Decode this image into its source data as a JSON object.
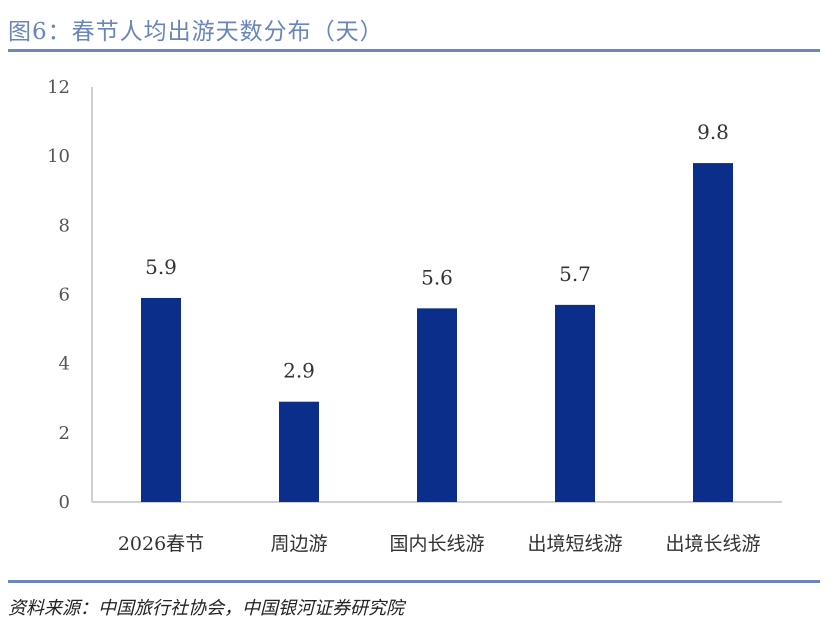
{
  "title": "图6：春节人均出游天数分布（天）",
  "source": "资料来源：中国旅行社协会，中国银河证券研究院",
  "colors": {
    "bar": "#0b2e8a",
    "title": "#6a85bb",
    "rule": "#6f87b8"
  },
  "chart_data": {
    "type": "bar",
    "title": "图6：春节人均出游天数分布（天）",
    "categories": [
      "2026春节",
      "周边游",
      "国内长线游",
      "出境短线游",
      "出境长线游"
    ],
    "values": [
      5.9,
      2.9,
      5.6,
      5.7,
      9.8
    ],
    "data_labels": [
      "5.9",
      "2.9",
      "5.6",
      "5.7",
      "9.8"
    ],
    "ylim": [
      0,
      12
    ],
    "yticks": [
      "0",
      "2",
      "4",
      "6",
      "8",
      "10",
      "12"
    ],
    "grid": false,
    "legend": "none"
  }
}
